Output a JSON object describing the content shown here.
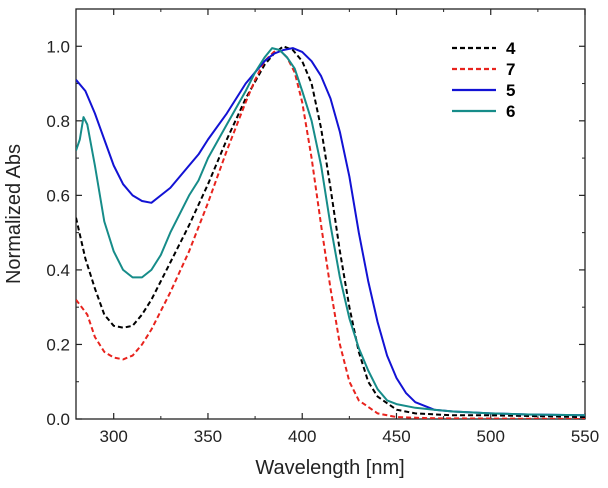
{
  "chart_data": {
    "type": "line",
    "title": "",
    "xlabel": "Wavelength [nm]",
    "ylabel": "Normalized Abs",
    "xlim": [
      280,
      550
    ],
    "ylim": [
      0,
      1.1
    ],
    "x_ticks": [
      300,
      350,
      400,
      450,
      500,
      550
    ],
    "y_ticks": [
      0.0,
      0.2,
      0.4,
      0.6,
      0.8,
      1.0
    ],
    "x_tick_labels": [
      "300",
      "350",
      "400",
      "450",
      "500",
      "550"
    ],
    "y_tick_labels": [
      "0.0",
      "0.2",
      "0.4",
      "0.6",
      "0.8",
      "1.0"
    ],
    "legend_position": "top-right",
    "series": [
      {
        "name": "4",
        "color": "#000000",
        "style": "dashed",
        "points": [
          [
            280,
            0.54
          ],
          [
            285,
            0.43
          ],
          [
            290,
            0.35
          ],
          [
            295,
            0.28
          ],
          [
            300,
            0.25
          ],
          [
            305,
            0.245
          ],
          [
            310,
            0.25
          ],
          [
            315,
            0.28
          ],
          [
            320,
            0.32
          ],
          [
            330,
            0.42
          ],
          [
            340,
            0.52
          ],
          [
            350,
            0.63
          ],
          [
            360,
            0.75
          ],
          [
            370,
            0.86
          ],
          [
            380,
            0.95
          ],
          [
            385,
            0.98
          ],
          [
            390,
            1.0
          ],
          [
            395,
            0.99
          ],
          [
            400,
            0.96
          ],
          [
            405,
            0.9
          ],
          [
            410,
            0.78
          ],
          [
            415,
            0.62
          ],
          [
            420,
            0.45
          ],
          [
            425,
            0.3
          ],
          [
            430,
            0.18
          ],
          [
            435,
            0.1
          ],
          [
            440,
            0.06
          ],
          [
            450,
            0.025
          ],
          [
            460,
            0.015
          ],
          [
            480,
            0.01
          ],
          [
            500,
            0.01
          ],
          [
            550,
            0.005
          ]
        ]
      },
      {
        "name": "7",
        "color": "#e8231d",
        "style": "dashed",
        "points": [
          [
            280,
            0.32
          ],
          [
            283,
            0.3
          ],
          [
            286,
            0.28
          ],
          [
            290,
            0.22
          ],
          [
            295,
            0.18
          ],
          [
            300,
            0.165
          ],
          [
            305,
            0.16
          ],
          [
            310,
            0.17
          ],
          [
            315,
            0.2
          ],
          [
            320,
            0.24
          ],
          [
            330,
            0.34
          ],
          [
            340,
            0.45
          ],
          [
            350,
            0.58
          ],
          [
            360,
            0.72
          ],
          [
            370,
            0.85
          ],
          [
            375,
            0.91
          ],
          [
            380,
            0.96
          ],
          [
            385,
            0.985
          ],
          [
            388,
            0.99
          ],
          [
            392,
            0.97
          ],
          [
            396,
            0.93
          ],
          [
            400,
            0.85
          ],
          [
            405,
            0.7
          ],
          [
            410,
            0.52
          ],
          [
            415,
            0.35
          ],
          [
            420,
            0.2
          ],
          [
            425,
            0.1
          ],
          [
            430,
            0.05
          ],
          [
            440,
            0.015
          ],
          [
            450,
            0.005
          ],
          [
            470,
            0.002
          ],
          [
            550,
            0.0
          ]
        ]
      },
      {
        "name": "5",
        "color": "#1212d4",
        "style": "solid",
        "points": [
          [
            280,
            0.91
          ],
          [
            285,
            0.88
          ],
          [
            290,
            0.82
          ],
          [
            295,
            0.75
          ],
          [
            300,
            0.68
          ],
          [
            305,
            0.63
          ],
          [
            310,
            0.6
          ],
          [
            315,
            0.585
          ],
          [
            320,
            0.58
          ],
          [
            325,
            0.6
          ],
          [
            330,
            0.62
          ],
          [
            340,
            0.68
          ],
          [
            345,
            0.71
          ],
          [
            350,
            0.75
          ],
          [
            360,
            0.82
          ],
          [
            370,
            0.9
          ],
          [
            380,
            0.96
          ],
          [
            385,
            0.98
          ],
          [
            390,
            0.99
          ],
          [
            395,
            0.995
          ],
          [
            400,
            0.985
          ],
          [
            405,
            0.96
          ],
          [
            410,
            0.92
          ],
          [
            415,
            0.86
          ],
          [
            420,
            0.77
          ],
          [
            425,
            0.65
          ],
          [
            430,
            0.5
          ],
          [
            435,
            0.37
          ],
          [
            440,
            0.26
          ],
          [
            445,
            0.17
          ],
          [
            450,
            0.11
          ],
          [
            455,
            0.07
          ],
          [
            460,
            0.045
          ],
          [
            470,
            0.025
          ],
          [
            480,
            0.02
          ],
          [
            500,
            0.015
          ],
          [
            520,
            0.012
          ],
          [
            550,
            0.01
          ]
        ]
      },
      {
        "name": "6",
        "color": "#168c89",
        "style": "solid",
        "points": [
          [
            280,
            0.72
          ],
          [
            282,
            0.75
          ],
          [
            284,
            0.81
          ],
          [
            286,
            0.79
          ],
          [
            290,
            0.68
          ],
          [
            295,
            0.53
          ],
          [
            300,
            0.45
          ],
          [
            305,
            0.4
          ],
          [
            310,
            0.38
          ],
          [
            315,
            0.38
          ],
          [
            320,
            0.4
          ],
          [
            325,
            0.44
          ],
          [
            330,
            0.5
          ],
          [
            340,
            0.6
          ],
          [
            345,
            0.64
          ],
          [
            350,
            0.7
          ],
          [
            360,
            0.79
          ],
          [
            370,
            0.88
          ],
          [
            375,
            0.93
          ],
          [
            380,
            0.97
          ],
          [
            384,
            0.995
          ],
          [
            388,
            0.99
          ],
          [
            392,
            0.97
          ],
          [
            396,
            0.94
          ],
          [
            400,
            0.88
          ],
          [
            405,
            0.8
          ],
          [
            410,
            0.68
          ],
          [
            415,
            0.52
          ],
          [
            420,
            0.38
          ],
          [
            425,
            0.27
          ],
          [
            430,
            0.19
          ],
          [
            435,
            0.13
          ],
          [
            440,
            0.08
          ],
          [
            445,
            0.05
          ],
          [
            450,
            0.04
          ],
          [
            460,
            0.03
          ],
          [
            470,
            0.025
          ],
          [
            480,
            0.02
          ],
          [
            500,
            0.015
          ],
          [
            520,
            0.012
          ],
          [
            550,
            0.01
          ]
        ]
      }
    ]
  }
}
